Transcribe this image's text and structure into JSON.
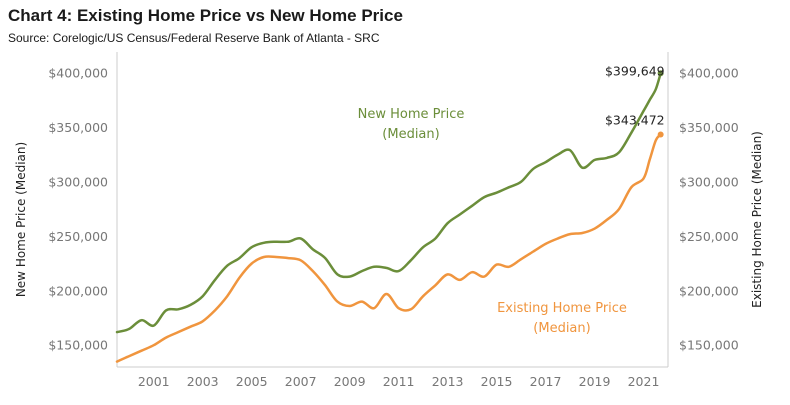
{
  "header": {
    "title": "Chart 4: Existing Home Price vs New Home Price",
    "subtitle": "Source: Corelogic/US Census/Federal Reserve Bank of Atlanta - SRC"
  },
  "colors": {
    "new_home": "#6b8e3a",
    "existing_home": "#f0953e",
    "axis": "#cccccc"
  },
  "chart_data": {
    "type": "line",
    "title": "Chart 4: Existing Home Price vs New Home Price",
    "y_left_label": "New Home Price (Median)",
    "y_right_label": "Existing Home Price (Median)",
    "ylim": [
      130000,
      410000
    ],
    "xlim": [
      2000.0,
      2022.5
    ],
    "y_ticks": [
      {
        "value": 150000,
        "label": "$150,000"
      },
      {
        "value": 200000,
        "label": "$200,000"
      },
      {
        "value": 250000,
        "label": "$250,000"
      },
      {
        "value": 300000,
        "label": "$300,000"
      },
      {
        "value": 350000,
        "label": "$350,000"
      },
      {
        "value": 400000,
        "label": "$400,000"
      }
    ],
    "x_ticks": [
      "2001",
      "2003",
      "2005",
      "2007",
      "2009",
      "2011",
      "2013",
      "2015",
      "2017",
      "2019",
      "2021"
    ],
    "grid": false,
    "series": [
      {
        "name": "New Home Price (Median)",
        "annotation": [
          "New Home Price",
          "(Median)"
        ],
        "end_label": "$399,649",
        "color": "#6b8e3a",
        "x": [
          2000.0,
          2000.5,
          2001.0,
          2001.5,
          2002.0,
          2002.5,
          2003.0,
          2003.5,
          2004.0,
          2004.5,
          2005.0,
          2005.5,
          2006.0,
          2006.5,
          2007.0,
          2007.5,
          2008.0,
          2008.5,
          2009.0,
          2009.5,
          2010.0,
          2010.5,
          2011.0,
          2011.5,
          2012.0,
          2012.5,
          2013.0,
          2013.5,
          2014.0,
          2014.5,
          2015.0,
          2015.5,
          2016.0,
          2016.5,
          2017.0,
          2017.5,
          2018.0,
          2018.5,
          2019.0,
          2019.5,
          2020.0,
          2020.5,
          2021.0,
          2021.5,
          2021.75,
          2022.0,
          2022.2
        ],
        "y": [
          162000,
          165000,
          173000,
          168000,
          182000,
          183000,
          187000,
          195000,
          210000,
          223000,
          230000,
          240000,
          244000,
          245000,
          245000,
          248000,
          238000,
          230000,
          215000,
          213000,
          218000,
          222000,
          221000,
          218000,
          228000,
          240000,
          248000,
          262000,
          270000,
          278000,
          286000,
          290000,
          295000,
          300000,
          312000,
          318000,
          325000,
          329000,
          313000,
          320000,
          322000,
          327000,
          345000,
          365000,
          375000,
          385000,
          399649
        ]
      },
      {
        "name": "Existing Home Price (Median)",
        "annotation": [
          "Existing Home Price",
          "(Median)"
        ],
        "end_label": "$343,472",
        "color": "#f0953e",
        "x": [
          2000.0,
          2000.5,
          2001.0,
          2001.5,
          2002.0,
          2002.5,
          2003.0,
          2003.5,
          2004.0,
          2004.5,
          2005.0,
          2005.5,
          2006.0,
          2006.5,
          2007.0,
          2007.5,
          2008.0,
          2008.5,
          2009.0,
          2009.5,
          2010.0,
          2010.5,
          2011.0,
          2011.5,
          2012.0,
          2012.5,
          2013.0,
          2013.5,
          2014.0,
          2014.5,
          2015.0,
          2015.5,
          2016.0,
          2016.5,
          2017.0,
          2017.5,
          2018.0,
          2018.5,
          2019.0,
          2019.5,
          2020.0,
          2020.5,
          2021.0,
          2021.5,
          2021.75,
          2022.0,
          2022.2
        ],
        "y": [
          135000,
          140000,
          145000,
          150000,
          157000,
          162000,
          167000,
          172000,
          182000,
          195000,
          212000,
          225000,
          231000,
          231000,
          230000,
          228000,
          218000,
          205000,
          190000,
          186000,
          190000,
          184000,
          197000,
          184000,
          183000,
          195000,
          205000,
          215000,
          210000,
          217000,
          213000,
          224000,
          222000,
          229000,
          236000,
          243000,
          248000,
          252000,
          253000,
          257000,
          265000,
          275000,
          295000,
          303000,
          320000,
          338000,
          343472
        ]
      }
    ]
  }
}
